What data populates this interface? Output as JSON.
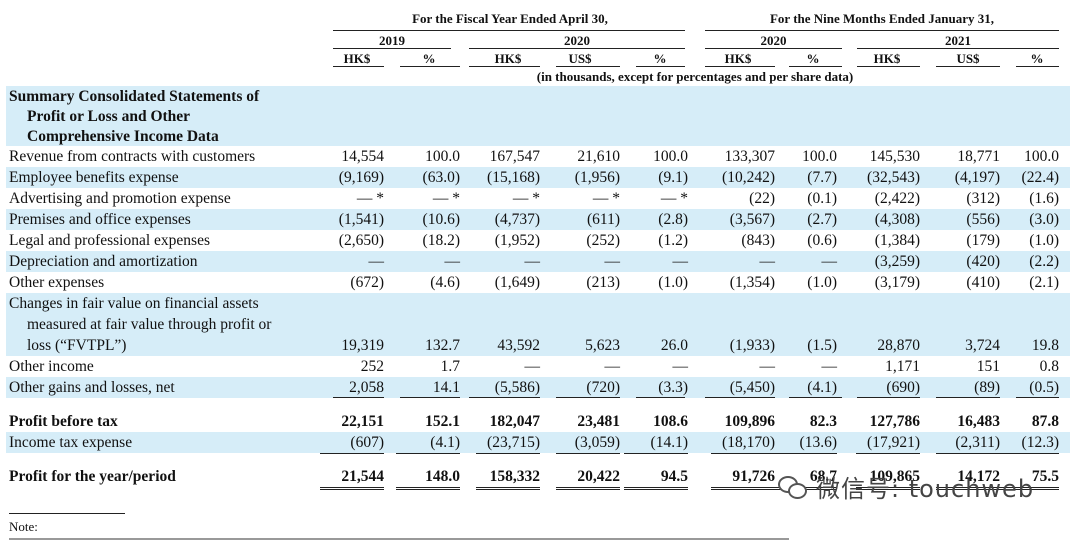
{
  "header": {
    "group_fy": "For the Fiscal Year Ended April 30,",
    "group_nm": "For the Nine Months Ended January 31,",
    "year_2019": "2019",
    "year_2020": "2020",
    "year_2020b": "2020",
    "year_2021": "2021",
    "currencies": [
      "HK$",
      "%",
      "HK$",
      "US$",
      "%",
      "HK$",
      "%",
      "HK$",
      "US$",
      "%"
    ],
    "units_note": "(in thousands, except for percentages and per share data)"
  },
  "section_title": [
    "Summary Consolidated Statements of",
    "Profit or Loss and Other",
    "Comprehensive Income Data"
  ],
  "rows": [
    {
      "label": [
        "Revenue from contracts with customers"
      ],
      "values": [
        "14,554",
        "100.0",
        "167,547",
        "21,610",
        "100.0",
        "133,307",
        "100.0",
        "145,530",
        "18,771",
        "100.0"
      ]
    },
    {
      "label": [
        "Employee benefits expense"
      ],
      "values": [
        "(9,169)",
        "(63.0)",
        "(15,168)",
        "(1,956)",
        "(9.1)",
        "(10,242)",
        "(7.7)",
        "(32,543)",
        "(4,197)",
        "(22.4)"
      ]
    },
    {
      "label": [
        "Advertising and promotion expense"
      ],
      "values": [
        "— *",
        "— *",
        "— *",
        "— *",
        "— *",
        "(22)",
        "(0.1)",
        "(2,422)",
        "(312)",
        "(1.6)"
      ]
    },
    {
      "label": [
        "Premises and office expenses"
      ],
      "values": [
        "(1,541)",
        "(10.6)",
        "(4,737)",
        "(611)",
        "(2.8)",
        "(3,567)",
        "(2.7)",
        "(4,308)",
        "(556)",
        "(3.0)"
      ]
    },
    {
      "label": [
        "Legal and professional expenses"
      ],
      "values": [
        "(2,650)",
        "(18.2)",
        "(1,952)",
        "(252)",
        "(1.2)",
        "(843)",
        "(0.6)",
        "(1,384)",
        "(179)",
        "(1.0)"
      ]
    },
    {
      "label": [
        "Depreciation and amortization"
      ],
      "values": [
        "—",
        "—",
        "—",
        "—",
        "—",
        "—",
        "—",
        "(3,259)",
        "(420)",
        "(2.2)"
      ]
    },
    {
      "label": [
        "Other expenses"
      ],
      "values": [
        "(672)",
        "(4.6)",
        "(1,649)",
        "(213)",
        "(1.0)",
        "(1,354)",
        "(1.0)",
        "(3,179)",
        "(410)",
        "(2.1)"
      ]
    },
    {
      "label": [
        "Changes in fair value on financial assets",
        "measured at fair value through profit or",
        "loss (“FVTPL”)"
      ],
      "values": [
        "19,319",
        "132.7",
        "43,592",
        "5,623",
        "26.0",
        "(1,933)",
        "(1.5)",
        "28,870",
        "3,724",
        "19.8"
      ]
    },
    {
      "label": [
        "Other income"
      ],
      "values": [
        "252",
        "1.7",
        "—",
        "—",
        "—",
        "—",
        "—",
        "1,171",
        "151",
        "0.8"
      ]
    },
    {
      "label": [
        "Other gains and losses, net"
      ],
      "values": [
        "2,058",
        "14.1",
        "(5,586)",
        "(720)",
        "(3.3)",
        "(5,450)",
        "(4.1)",
        "(690)",
        "(89)",
        "(0.5)"
      ]
    },
    {
      "label": [
        "Profit before tax"
      ],
      "values": [
        "22,151",
        "152.1",
        "182,047",
        "23,481",
        "108.6",
        "109,896",
        "82.3",
        "127,786",
        "16,483",
        "87.8"
      ]
    },
    {
      "label": [
        "Income tax expense"
      ],
      "values": [
        "(607)",
        "(4.1)",
        "(23,715)",
        "(3,059)",
        "(14.1)",
        "(18,170)",
        "(13.6)",
        "(17,921)",
        "(2,311)",
        "(12.3)"
      ]
    },
    {
      "label": [
        "Profit for the year/period"
      ],
      "values": [
        "21,544",
        "148.0",
        "158,332",
        "20,422",
        "94.5",
        "91,726",
        "68.7",
        "109,865",
        "14,172",
        "75.5"
      ]
    }
  ],
  "note_label": "Note:",
  "watermark": "微信号: touchweb",
  "colors": {
    "row_band": "#d6edf8",
    "text": "#111111"
  }
}
